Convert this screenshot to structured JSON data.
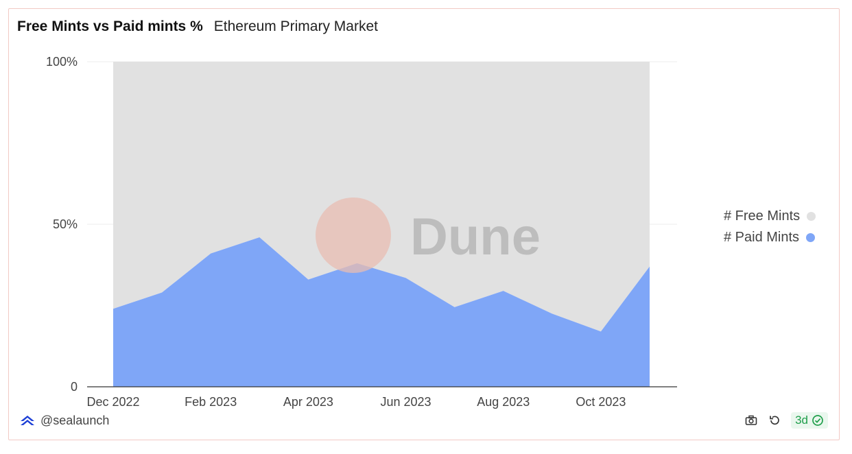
{
  "header": {
    "title": "Free Mints vs Paid mints %",
    "subtitle": "Ethereum Primary Market"
  },
  "chart_data": {
    "type": "area",
    "stacked": true,
    "normalized_percent": true,
    "x": [
      "Dec 2022",
      "Jan 2023",
      "Feb 2023",
      "Mar 2023",
      "Apr 2023",
      "May 2023",
      "Jun 2023",
      "Jul 2023",
      "Aug 2023",
      "Sep 2023",
      "Oct 2023",
      "Nov 2023"
    ],
    "x_tick_labels": [
      "Dec 2022",
      "Feb 2023",
      "Apr 2023",
      "Jun 2023",
      "Aug 2023",
      "Oct 2023"
    ],
    "series": [
      {
        "name": "# Paid Mints",
        "color": "#7fa6f7",
        "values": [
          24,
          29,
          41,
          46,
          33,
          38,
          33.5,
          24.5,
          29.5,
          22.5,
          17,
          37
        ]
      },
      {
        "name": "# Free Mints",
        "color": "#e1e1e1",
        "values": [
          76,
          71,
          59,
          54,
          67,
          62,
          66.5,
          75.5,
          70.5,
          77.5,
          83,
          63
        ]
      }
    ],
    "y_tick_labels": [
      "0",
      "50%",
      "100%"
    ],
    "ylim": [
      0,
      100
    ],
    "grid": true,
    "legend_position": "right"
  },
  "legend": {
    "items": [
      {
        "label": "# Free Mints",
        "color": "#e1e1e1"
      },
      {
        "label": "# Paid Mints",
        "color": "#7fa6f7"
      }
    ]
  },
  "watermark": {
    "text": "Dune"
  },
  "footer": {
    "username": "@sealaunch",
    "freshness_badge": "3d",
    "icons": [
      "camera-icon",
      "refresh-icon",
      "check-circle-icon"
    ]
  }
}
